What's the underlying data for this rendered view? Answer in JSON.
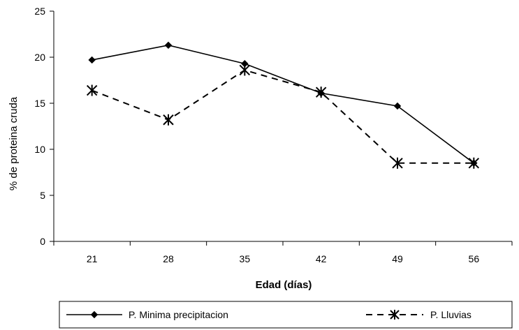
{
  "chart_data": {
    "type": "line",
    "x": [
      21,
      28,
      35,
      42,
      49,
      56
    ],
    "categories": [
      "21",
      "28",
      "35",
      "42",
      "49",
      "56"
    ],
    "series": [
      {
        "name": "P. Minima precipitacion",
        "values": [
          19.7,
          21.3,
          19.3,
          16.1,
          14.7,
          8.5
        ],
        "marker": "diamond",
        "line": "solid",
        "color": "#000000"
      },
      {
        "name": "P. Lluvias",
        "values": [
          16.4,
          13.2,
          18.6,
          16.2,
          8.5,
          8.5
        ],
        "marker": "asterisk",
        "line": "dashed",
        "color": "#000000"
      }
    ],
    "xlabel": "Edad (días)",
    "ylabel": "% de proteina cruda",
    "ylim": [
      0,
      25
    ],
    "yticks": [
      "0",
      "5",
      "10",
      "15",
      "20",
      "25"
    ],
    "grid": false,
    "legend_position": "bottom"
  }
}
